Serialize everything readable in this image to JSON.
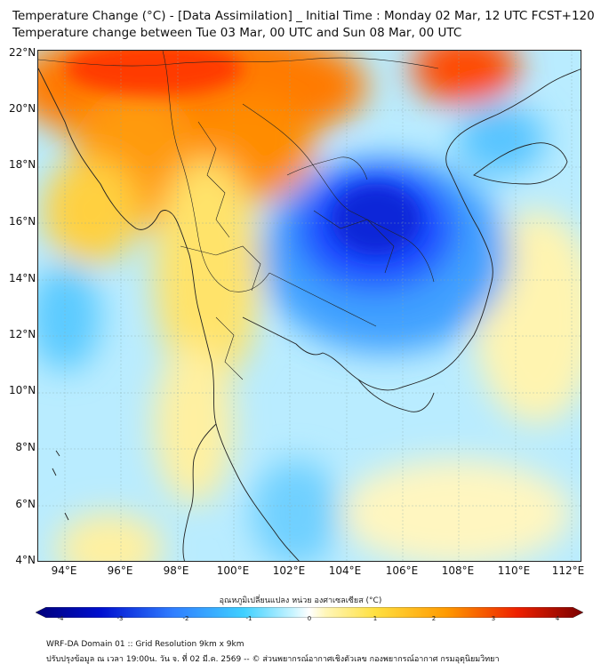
{
  "title": {
    "line1": "Temperature Change (°C) - [Data Assimilation] _ Initial Time : Monday 02 Mar, 12 UTC FCST+120",
    "line2": "Temperature change between Tue 03 Mar, 00 UTC and Sun 08 Mar, 00 UTC"
  },
  "axes": {
    "lat_labels": [
      "22°N",
      "20°N",
      "18°N",
      "16°N",
      "14°N",
      "12°N",
      "10°N",
      "8°N",
      "6°N",
      "4°N"
    ],
    "lon_labels": [
      "94°E",
      "96°E",
      "98°E",
      "100°E",
      "102°E",
      "104°E",
      "106°E",
      "108°E",
      "110°E",
      "112°E"
    ]
  },
  "colorbar": {
    "label": "อุณหภูมิเปลี่ยนแปลง หน่วย องศาเซลเซียส (°C)",
    "ticks": [
      "-4",
      "-3",
      "-2",
      "-1",
      "0",
      "1",
      "2",
      "3",
      "4"
    ],
    "min": -4,
    "max": 4,
    "colors": [
      "#00007a",
      "#0000c8",
      "#1e3cff",
      "#2f7dff",
      "#3fb6ff",
      "#7fe0ff",
      "#c8f4ff",
      "#ffffff",
      "#fff6b8",
      "#ffe36a",
      "#ffc000",
      "#ff8c00",
      "#ff4a00",
      "#e30000",
      "#8a0000"
    ]
  },
  "footer": {
    "line1": "WRF-DA Domain 01 :: Grid Resolution 9km x 9km",
    "line2": "ปรับปรุงข้อมูล ณ เวลา 19:00น. วัน จ. ที่ 02 มี.ค. 2569 -- © ส่วนพยากรณ์อากาศเชิงตัวเลข กองพยากรณ์อากาศ กรมอุตุนิยมวิทยา"
  },
  "map": {
    "lat_range": [
      4,
      22
    ],
    "lon_range": [
      93,
      112.5
    ],
    "field_description_points": [
      {
        "lon": 97.5,
        "lat": 21.5,
        "value": 3.8
      },
      {
        "lon": 101.0,
        "lat": 21.5,
        "value": 3.2
      },
      {
        "lon": 108.5,
        "lat": 21.8,
        "value": 3.5
      },
      {
        "lon": 96.5,
        "lat": 18.5,
        "value": 2.8
      },
      {
        "lon": 99.5,
        "lat": 18.5,
        "value": 2.5
      },
      {
        "lon": 100.0,
        "lat": 15.0,
        "value": 1.8
      },
      {
        "lon": 104.5,
        "lat": 15.8,
        "value": -3.2
      },
      {
        "lon": 106.0,
        "lat": 14.5,
        "value": -2.5
      },
      {
        "lon": 110.0,
        "lat": 19.0,
        "value": -1.5
      },
      {
        "lon": 94.0,
        "lat": 13.0,
        "value": -1.2
      },
      {
        "lon": 101.0,
        "lat": 6.0,
        "value": -1.4
      },
      {
        "lon": 110.0,
        "lat": 11.0,
        "value": 1.0
      }
    ]
  }
}
